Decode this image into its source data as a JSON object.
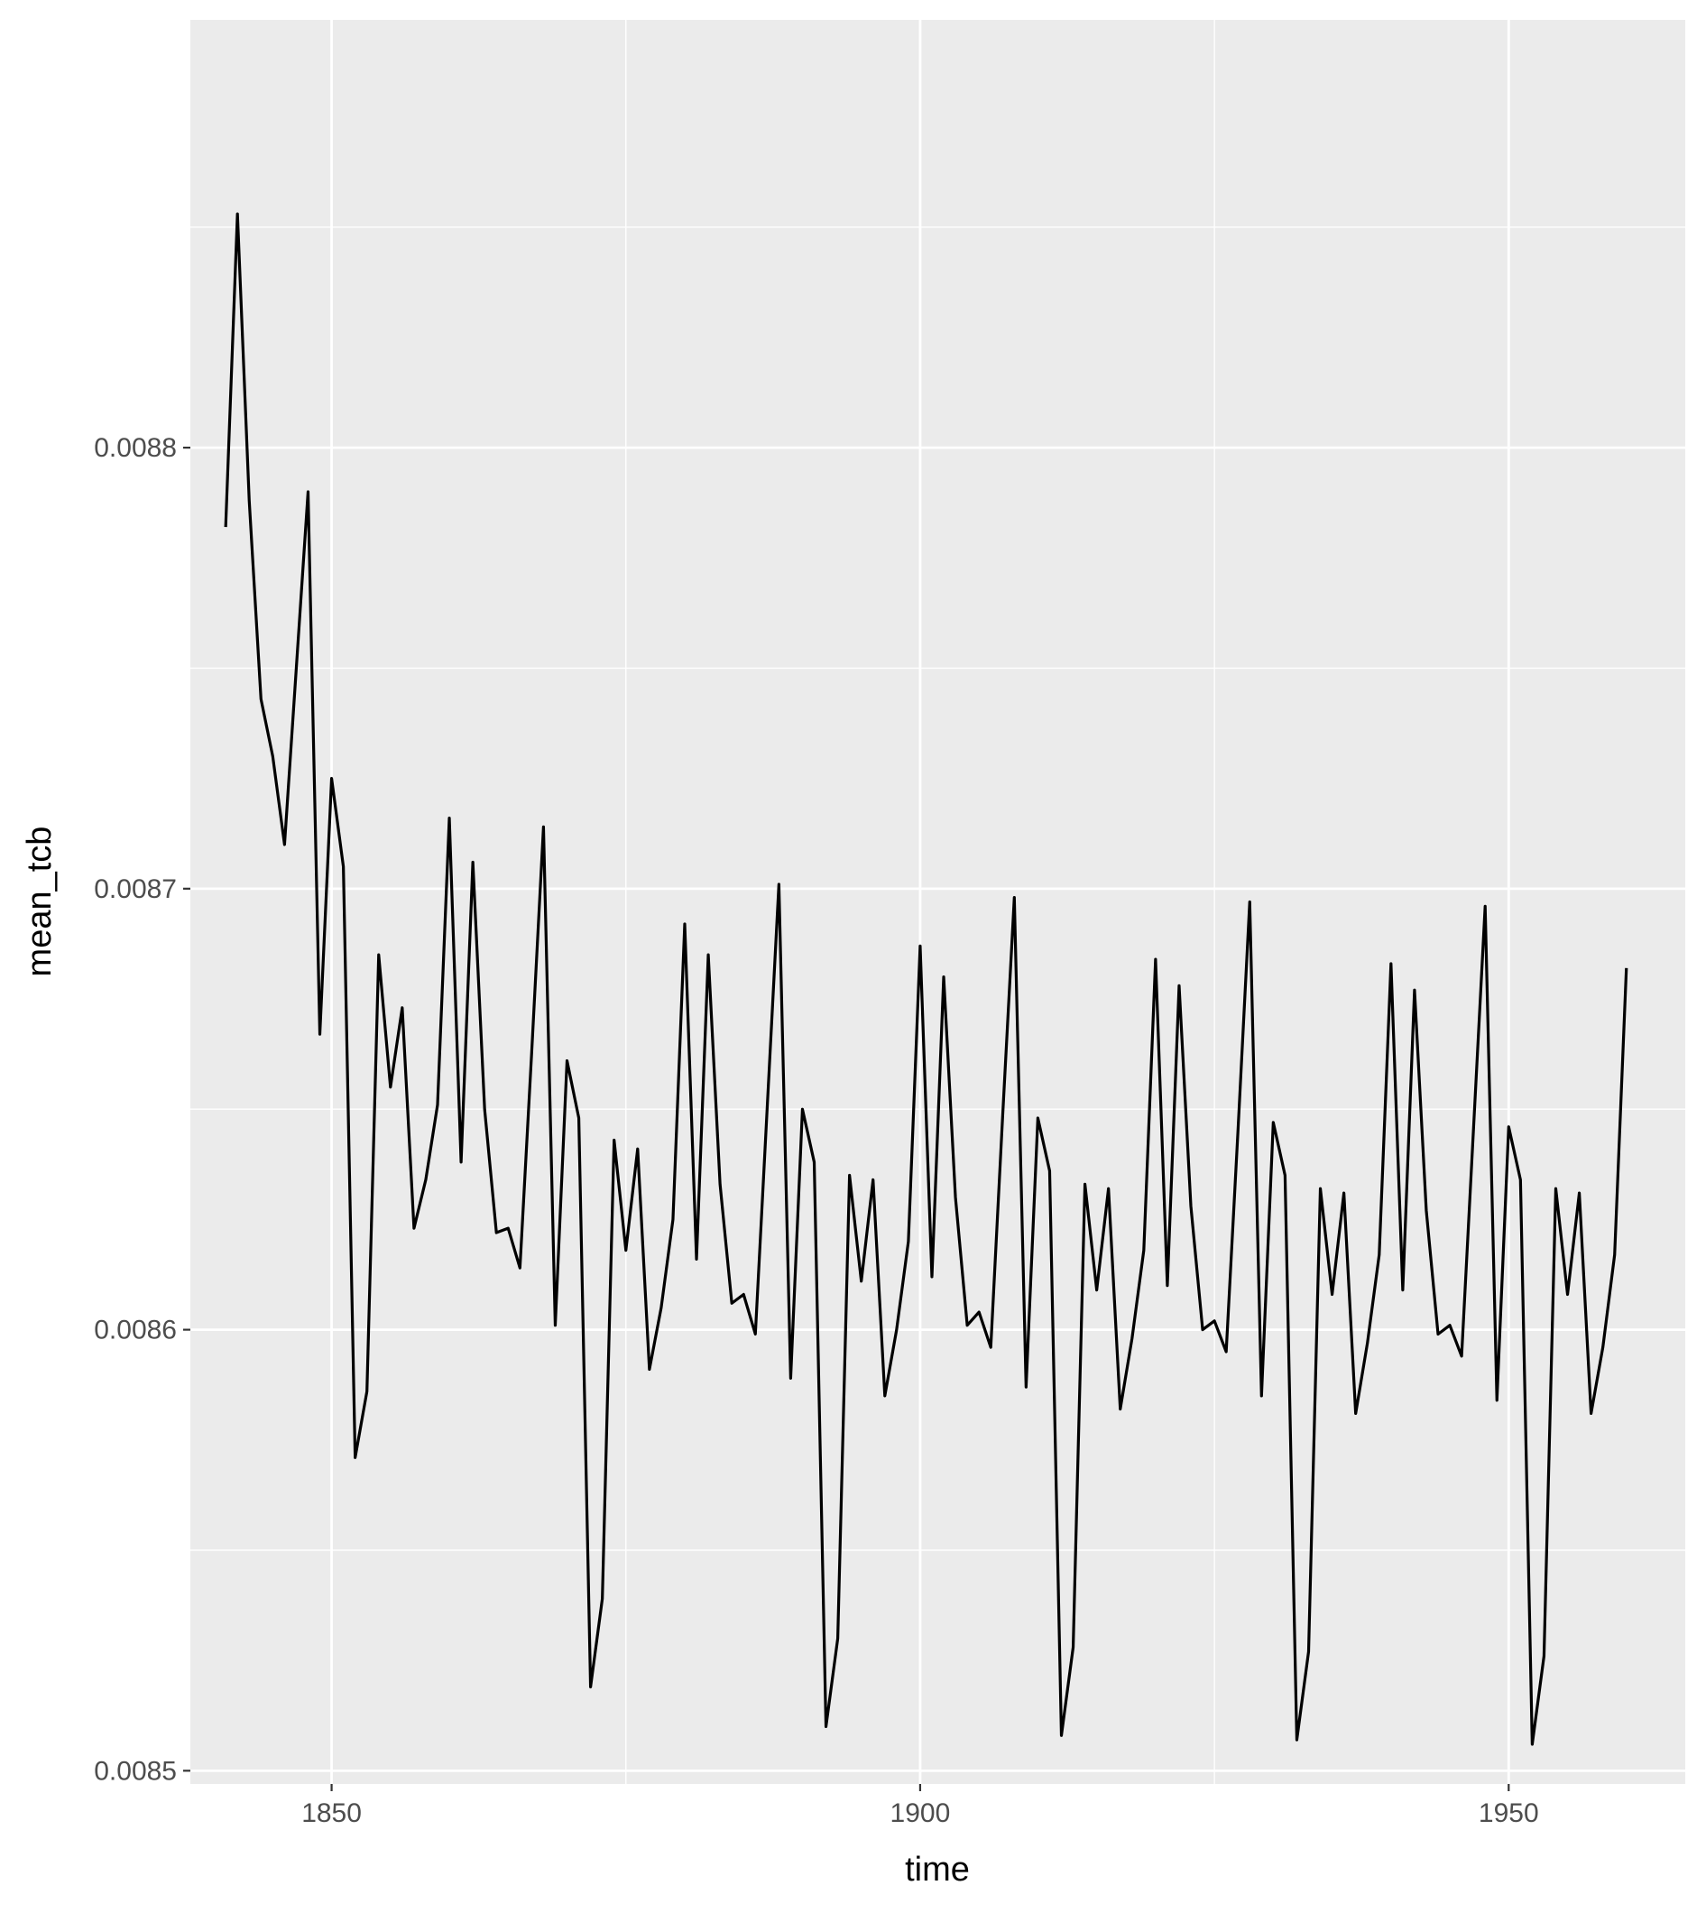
{
  "chart_data": {
    "type": "line",
    "title": "",
    "xlabel": "time",
    "ylabel": "mean_tcb",
    "xlim": [
      1838,
      1965
    ],
    "ylim": [
      0.008497,
      0.008897
    ],
    "x_ticks": [
      1850,
      1900,
      1950
    ],
    "x_tick_labels": [
      "1850",
      "1900",
      "1950"
    ],
    "y_ticks": [
      0.0085,
      0.0086,
      0.0087,
      0.0088
    ],
    "y_tick_labels": [
      "0.0085",
      "0.0086",
      "0.0087",
      "0.0088"
    ],
    "grid": true,
    "legend": "none",
    "colors": {
      "panel_background": "#ebebeb",
      "grid_line": "#ffffff",
      "series_line": "#000000",
      "tick_label": "#4d4d4d",
      "axis_title": "#000000"
    },
    "series": [
      {
        "x": [
          1841,
          1842,
          1843,
          1844,
          1845,
          1846,
          1847,
          1848,
          1849,
          1850,
          1851,
          1852,
          1853,
          1854,
          1855,
          1856,
          1857,
          1858,
          1859,
          1860,
          1861,
          1862,
          1863,
          1864,
          1865,
          1866,
          1867,
          1868,
          1869,
          1870,
          1871,
          1872,
          1873,
          1874,
          1875,
          1876,
          1877,
          1878,
          1879,
          1880,
          1881,
          1882,
          1883,
          1884,
          1885,
          1886,
          1887,
          1888,
          1889,
          1890,
          1891,
          1892,
          1893,
          1894,
          1895,
          1896,
          1897,
          1898,
          1899,
          1900,
          1901,
          1902,
          1903,
          1904,
          1905,
          1906,
          1907,
          1908,
          1909,
          1910,
          1911,
          1912,
          1913,
          1914,
          1915,
          1916,
          1917,
          1918,
          1919,
          1920,
          1921,
          1922,
          1923,
          1924,
          1925,
          1926,
          1927,
          1928,
          1929,
          1930,
          1931,
          1932,
          1933,
          1934,
          1935,
          1936,
          1937,
          1938,
          1939,
          1940,
          1941,
          1942,
          1943,
          1944,
          1945,
          1946,
          1947,
          1948,
          1949,
          1950,
          1951,
          1952,
          1953,
          1954,
          1955,
          1956,
          1957,
          1958,
          1959,
          1960
        ],
        "values": [
          0.008782,
          0.008853,
          0.008788,
          0.008743,
          0.00873,
          0.00871,
          0.00875,
          0.00879,
          0.008667,
          0.008725,
          0.008705,
          0.008571,
          0.008586,
          0.008685,
          0.008655,
          0.008673,
          0.008623,
          0.008634,
          0.008651,
          0.008716,
          0.008638,
          0.008706,
          0.00865,
          0.008622,
          0.008623,
          0.008614,
          0.008663,
          0.008714,
          0.008601,
          0.008661,
          0.008648,
          0.008519,
          0.008539,
          0.008643,
          0.008618,
          0.008641,
          0.008591,
          0.008605,
          0.008625,
          0.008692,
          0.008616,
          0.008685,
          0.008633,
          0.008606,
          0.008608,
          0.008599,
          0.00865,
          0.008701,
          0.008589,
          0.00865,
          0.008638,
          0.00851,
          0.00853,
          0.008635,
          0.008611,
          0.008634,
          0.008585,
          0.0086,
          0.00862,
          0.008687,
          0.008612,
          0.00868,
          0.00863,
          0.008601,
          0.008604,
          0.008596,
          0.008648,
          0.008698,
          0.008587,
          0.008648,
          0.008636,
          0.008508,
          0.008528,
          0.008633,
          0.008609,
          0.008632,
          0.008582,
          0.008598,
          0.008618,
          0.008684,
          0.00861,
          0.008678,
          0.008628,
          0.0086,
          0.008602,
          0.008595,
          0.008645,
          0.008697,
          0.008585,
          0.008647,
          0.008635,
          0.008507,
          0.008527,
          0.008632,
          0.008608,
          0.008631,
          0.008581,
          0.008597,
          0.008617,
          0.008683,
          0.008609,
          0.008677,
          0.008627,
          0.008599,
          0.008601,
          0.008594,
          0.008645,
          0.008696,
          0.008584,
          0.008646,
          0.008634,
          0.008506,
          0.008526,
          0.008632,
          0.008608,
          0.008631,
          0.008581,
          0.008596,
          0.008617,
          0.008682
        ]
      }
    ]
  }
}
